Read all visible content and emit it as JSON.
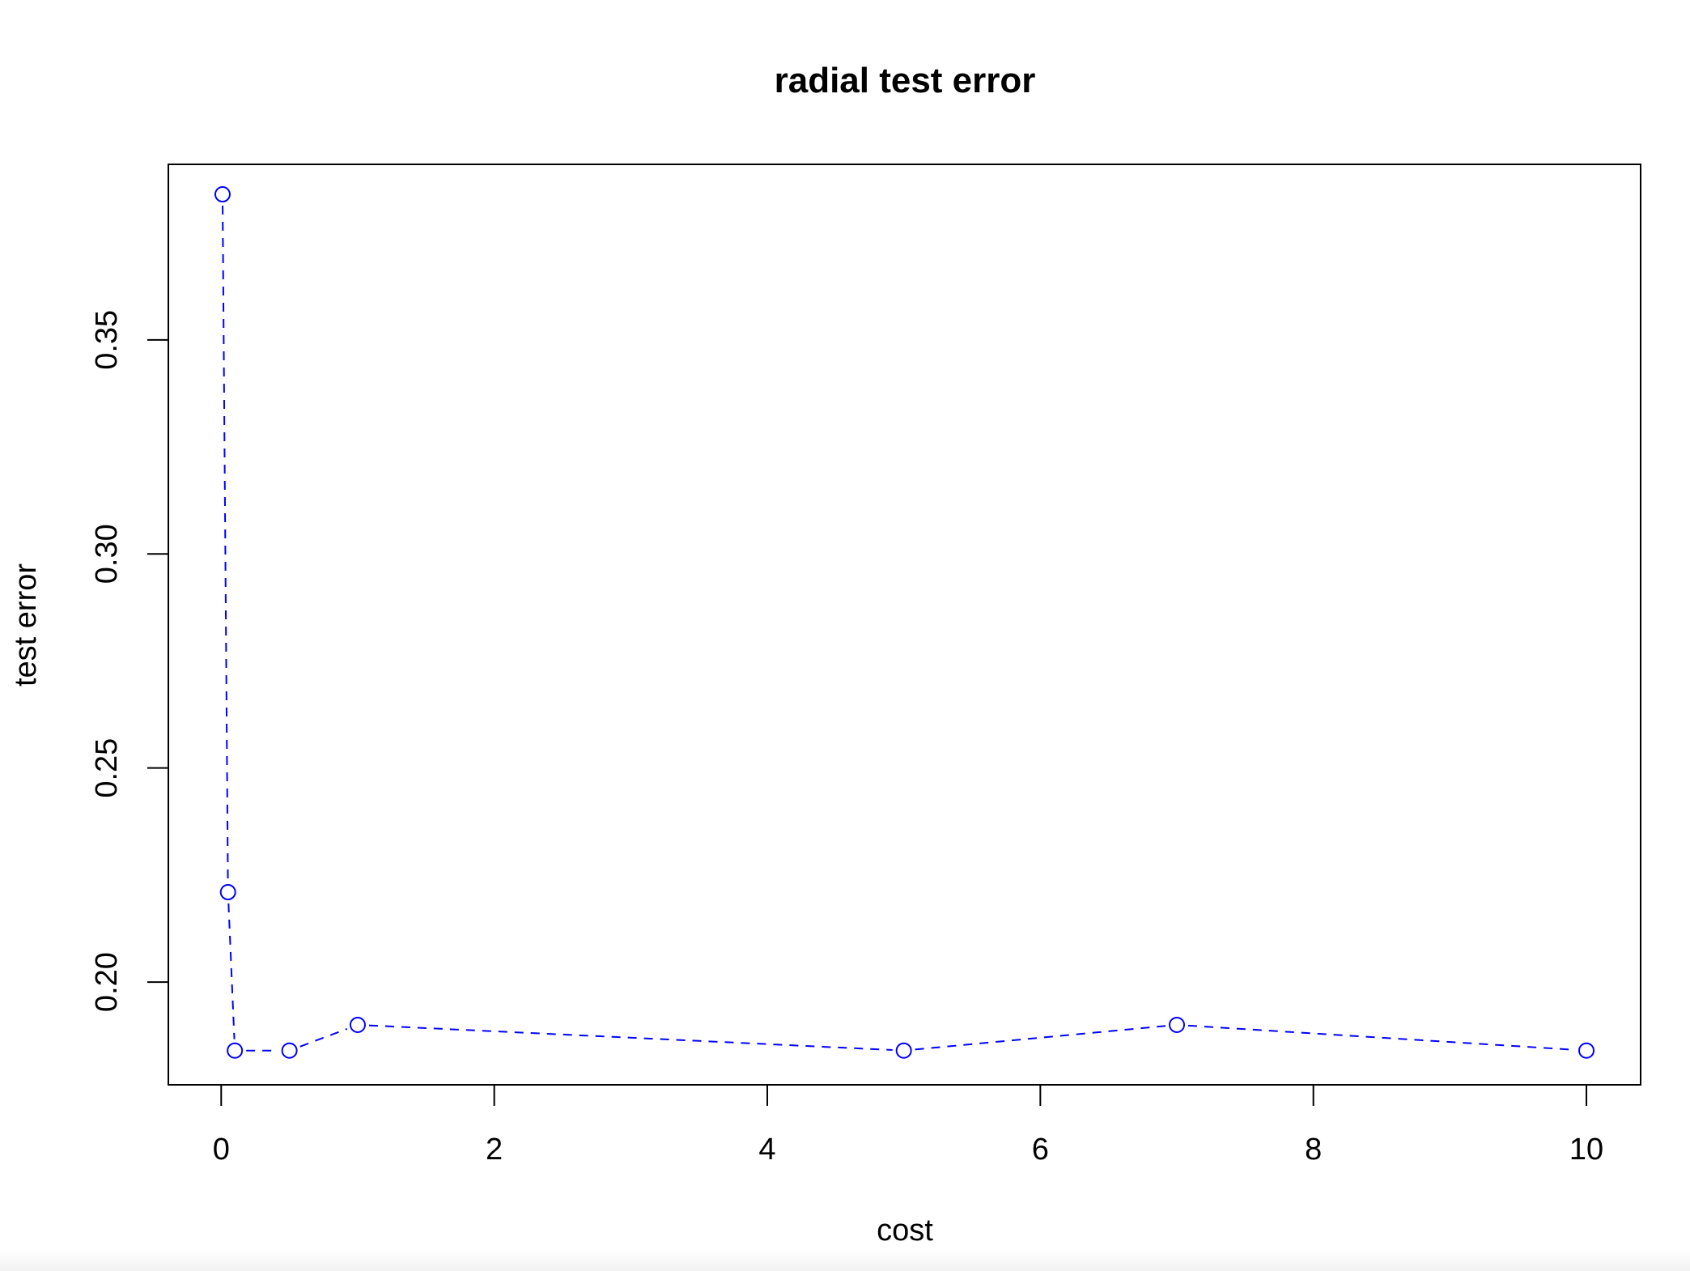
{
  "chart_data": {
    "type": "line",
    "title": "radial test error",
    "xlabel": "cost",
    "ylabel": "test error",
    "x": [
      0.01,
      0.05,
      0.1,
      0.5,
      1,
      5,
      7,
      10
    ],
    "series": [
      {
        "values": [
          0.384,
          0.221,
          0.184,
          0.184,
          0.19,
          0.184,
          0.19,
          0.184
        ]
      }
    ],
    "xlim": [
      -0.387,
      10.397
    ],
    "ylim": [
      0.176,
      0.391
    ],
    "x_ticks": [
      0,
      2,
      4,
      6,
      8,
      10
    ],
    "x_tick_labels": [
      "0",
      "2",
      "4",
      "6",
      "8",
      "10"
    ],
    "y_ticks": [
      0.2,
      0.25,
      0.3,
      0.35
    ],
    "y_tick_labels": [
      "0.20",
      "0.25",
      "0.30",
      "0.35"
    ],
    "grid": false,
    "line_style": "dashed",
    "marker": "open-circle",
    "colors": {
      "series": "#0000ff",
      "axes": "#000000"
    }
  }
}
